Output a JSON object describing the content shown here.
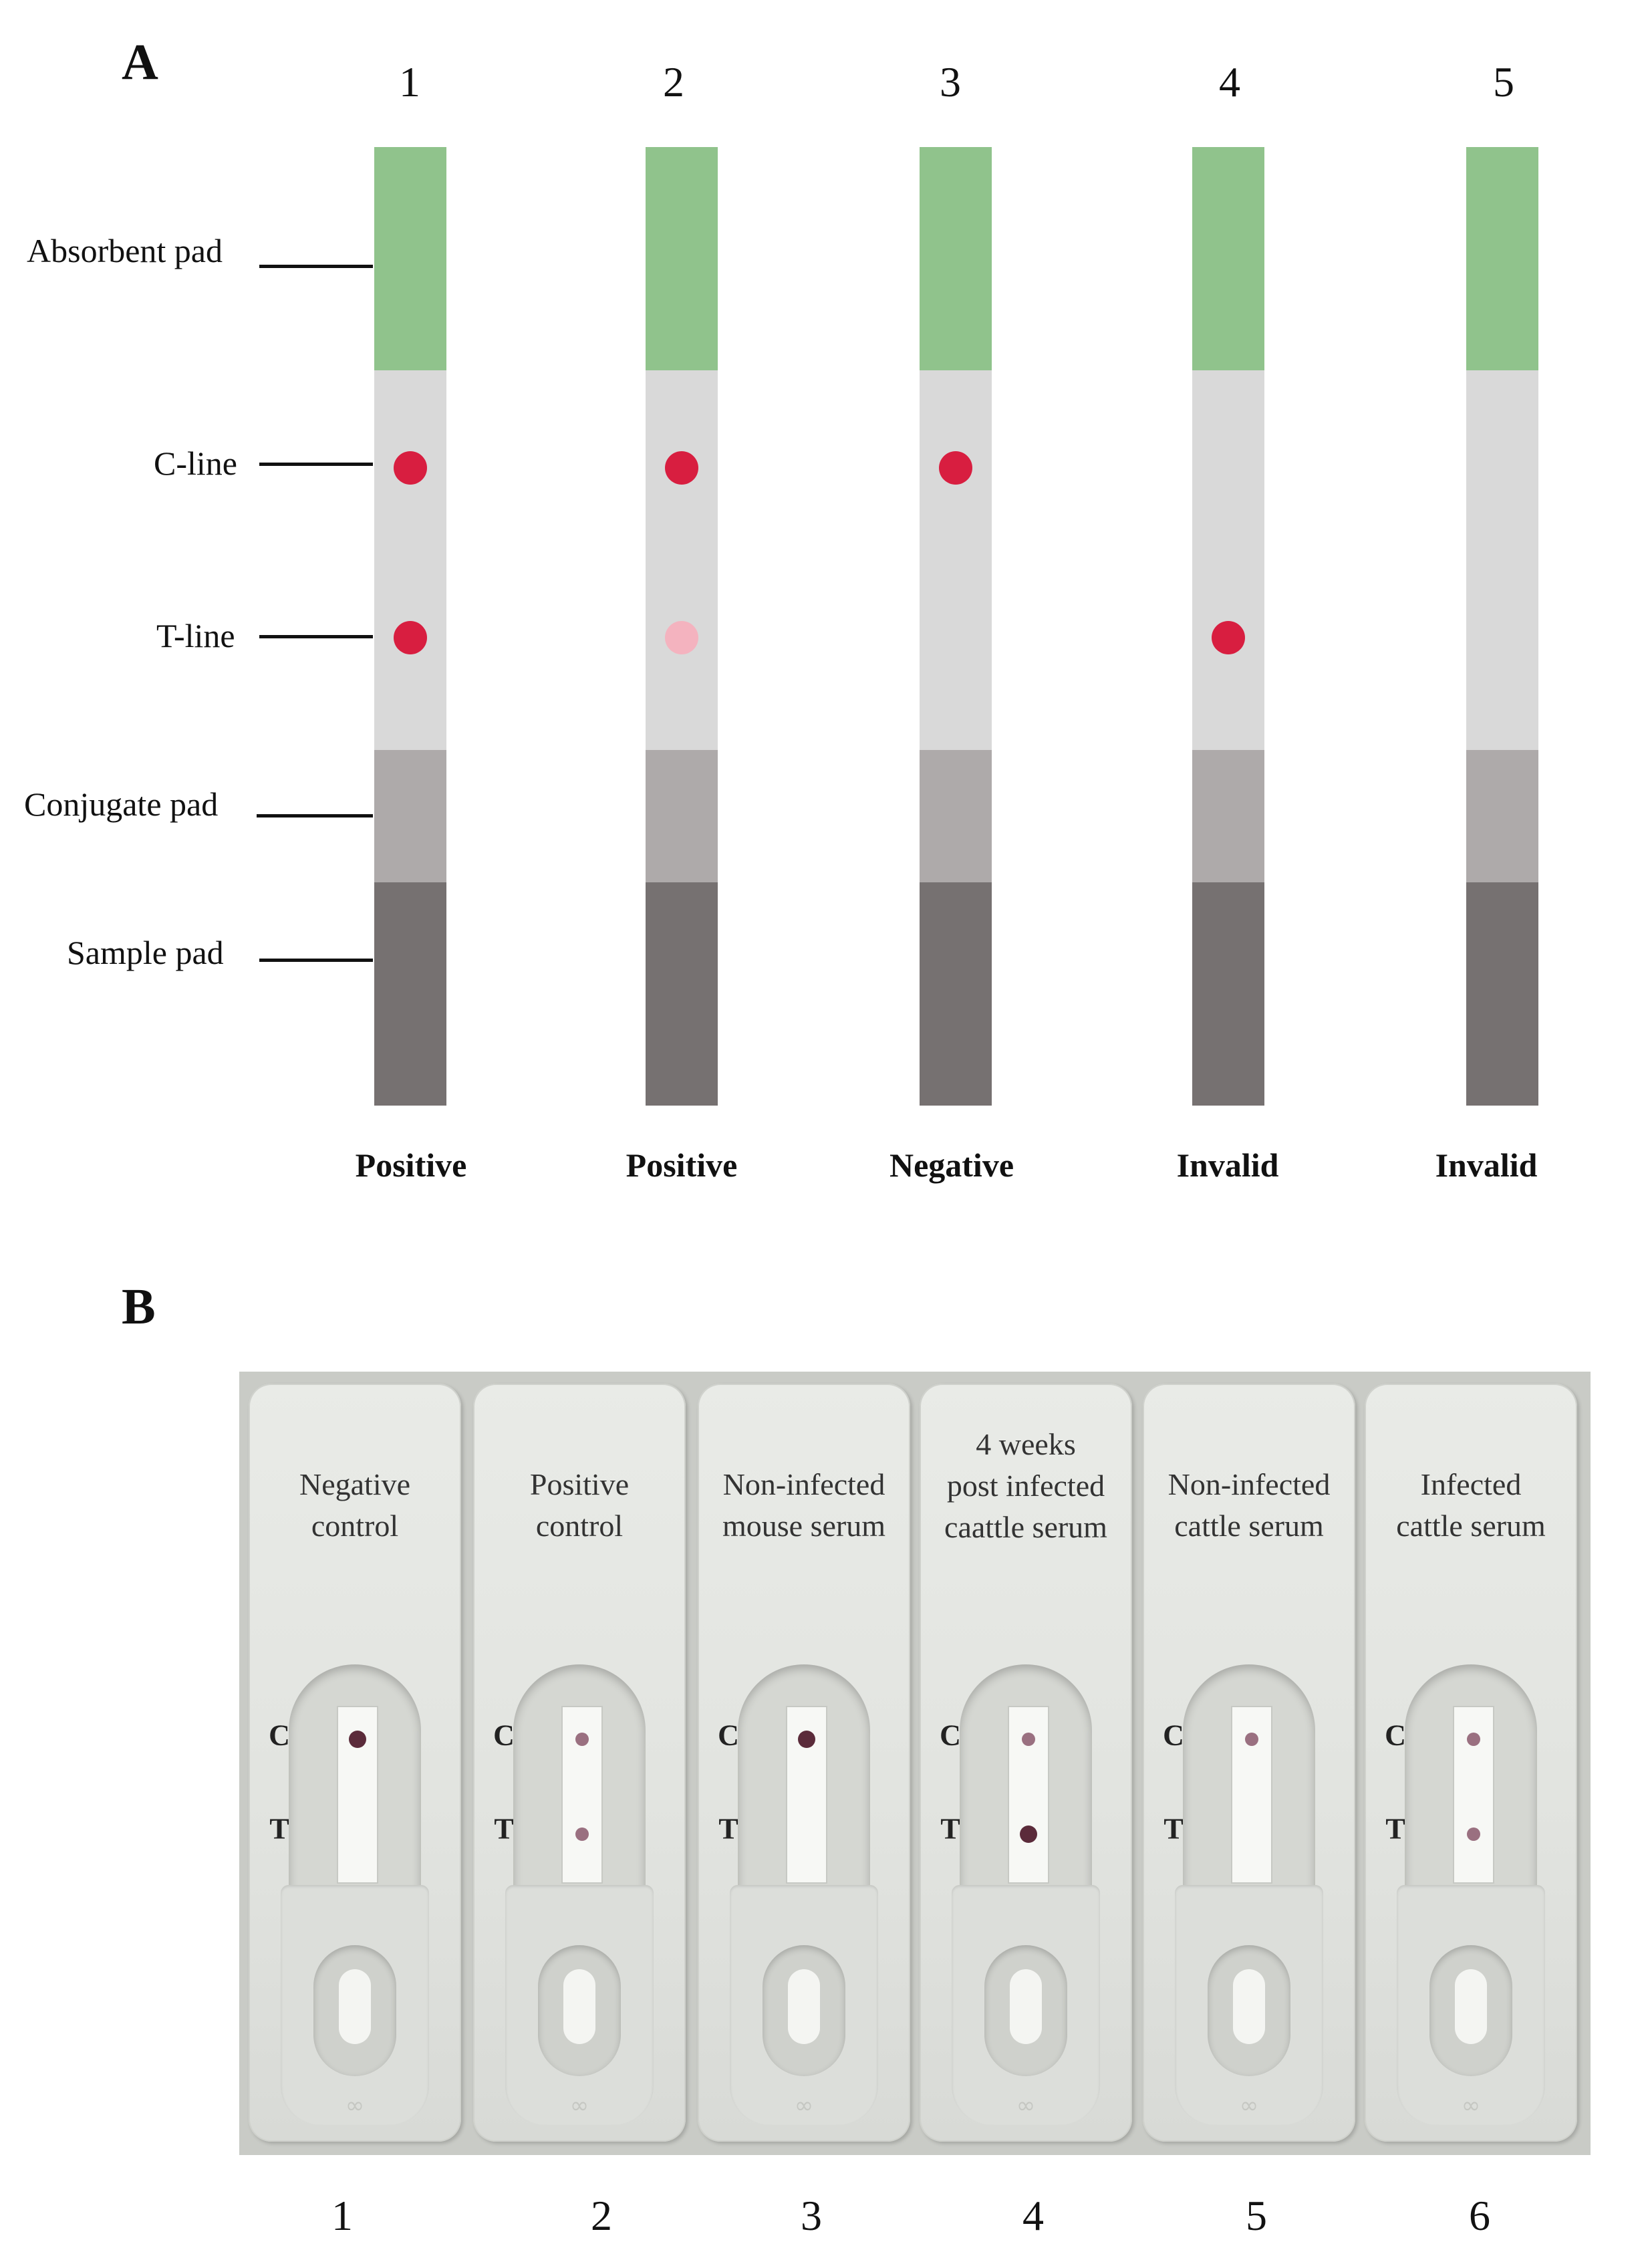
{
  "panel_a": {
    "letter": "A",
    "strip_numbers": [
      "1",
      "2",
      "3",
      "4",
      "5"
    ],
    "zone_labels": {
      "absorbent": "Absorbent pad",
      "cline": "C-line",
      "tline": "T-line",
      "conjugate": "Conjugate pad",
      "sample": "Sample pad"
    },
    "results": [
      "Positive",
      "Positive",
      "Negative",
      "Invalid",
      "Invalid"
    ],
    "colors": {
      "absorbent": "#90c38c",
      "membrane": "#d9d9d9",
      "conjugate": "#aeaaaa",
      "sample": "#767171",
      "dot_strong": "#d81e40",
      "dot_weak": "#f4b3bf"
    },
    "strips": [
      {
        "c_line": "strong",
        "t_line": "strong"
      },
      {
        "c_line": "strong",
        "t_line": "weak"
      },
      {
        "c_line": "strong",
        "t_line": "none"
      },
      {
        "c_line": "none",
        "t_line": "strong"
      },
      {
        "c_line": "none",
        "t_line": "none"
      }
    ]
  },
  "panel_b": {
    "letter": "B",
    "c_marker": "C",
    "t_marker": "T",
    "cassettes": [
      {
        "number": "1",
        "label": [
          "Negative",
          "control"
        ],
        "c_line": "strong",
        "t_line": "none"
      },
      {
        "number": "2",
        "label": [
          "Positive",
          "control"
        ],
        "c_line": "faint",
        "t_line": "faint"
      },
      {
        "number": "3",
        "label": [
          "Non-infected",
          "mouse serum"
        ],
        "c_line": "strong",
        "t_line": "none"
      },
      {
        "number": "4",
        "label": [
          "4 weeks",
          "post infected",
          "caattle serum"
        ],
        "c_line": "faint",
        "t_line": "strong"
      },
      {
        "number": "5",
        "label": [
          "Non-infected",
          "cattle serum"
        ],
        "c_line": "faint",
        "t_line": "none"
      },
      {
        "number": "6",
        "label": [
          "Infected",
          "cattle serum"
        ],
        "c_line": "faint",
        "t_line": "faint"
      }
    ]
  }
}
